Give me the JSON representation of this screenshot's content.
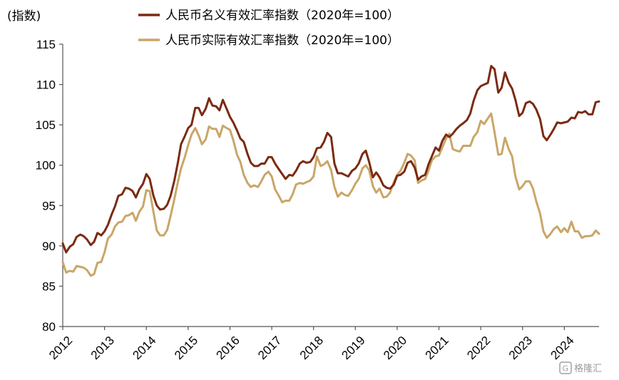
{
  "chart_data": {
    "type": "line",
    "title": "",
    "xlabel": "",
    "ylabel": "(指数)",
    "ylim": [
      80,
      115
    ],
    "yticks": [
      80,
      85,
      90,
      95,
      100,
      105,
      110,
      115
    ],
    "xlim": [
      2012,
      2024.83
    ],
    "xticks": [
      "2012",
      "2013",
      "2014",
      "2015",
      "2016",
      "2017",
      "2018",
      "2019",
      "2020",
      "2021",
      "2022",
      "2023",
      "2024"
    ],
    "grid": false,
    "legend_position": "top",
    "series": [
      {
        "name": "人民币名义有效汇率指数（2020年=100）",
        "color": "#7B2A12",
        "x": [
          2012.0,
          2012.08,
          2012.17,
          2012.25,
          2012.33,
          2012.42,
          2012.5,
          2012.58,
          2012.67,
          2012.75,
          2012.83,
          2012.92,
          2013.0,
          2013.08,
          2013.17,
          2013.25,
          2013.33,
          2013.42,
          2013.5,
          2013.58,
          2013.67,
          2013.75,
          2013.83,
          2013.92,
          2014.0,
          2014.08,
          2014.17,
          2014.25,
          2014.33,
          2014.42,
          2014.5,
          2014.58,
          2014.67,
          2014.75,
          2014.83,
          2014.92,
          2015.0,
          2015.08,
          2015.17,
          2015.25,
          2015.33,
          2015.42,
          2015.5,
          2015.58,
          2015.67,
          2015.75,
          2015.83,
          2015.92,
          2016.0,
          2016.08,
          2016.17,
          2016.25,
          2016.33,
          2016.42,
          2016.5,
          2016.58,
          2016.67,
          2016.75,
          2016.83,
          2016.92,
          2017.0,
          2017.08,
          2017.17,
          2017.25,
          2017.33,
          2017.42,
          2017.5,
          2017.58,
          2017.67,
          2017.75,
          2017.83,
          2017.92,
          2018.0,
          2018.08,
          2018.17,
          2018.25,
          2018.33,
          2018.42,
          2018.5,
          2018.58,
          2018.67,
          2018.75,
          2018.83,
          2018.92,
          2019.0,
          2019.08,
          2019.17,
          2019.25,
          2019.33,
          2019.42,
          2019.5,
          2019.58,
          2019.67,
          2019.75,
          2019.83,
          2019.92,
          2020.0,
          2020.08,
          2020.17,
          2020.25,
          2020.33,
          2020.42,
          2020.5,
          2020.58,
          2020.67,
          2020.75,
          2020.83,
          2020.92,
          2021.0,
          2021.08,
          2021.17,
          2021.25,
          2021.33,
          2021.42,
          2021.5,
          2021.58,
          2021.67,
          2021.75,
          2021.83,
          2021.92,
          2022.0,
          2022.08,
          2022.17,
          2022.25,
          2022.33,
          2022.42,
          2022.5,
          2022.58,
          2022.67,
          2022.75,
          2022.83,
          2022.92,
          2023.0,
          2023.08,
          2023.17,
          2023.25,
          2023.33,
          2023.42,
          2023.5,
          2023.58,
          2023.67,
          2023.75,
          2023.83,
          2023.92,
          2024.0,
          2024.08,
          2024.17,
          2024.25,
          2024.33,
          2024.42,
          2024.5,
          2024.58,
          2024.67,
          2024.75,
          2024.83
        ],
        "values": [
          90.3,
          89.2,
          89.9,
          90.2,
          91.1,
          91.4,
          91.2,
          90.8,
          90.1,
          90.5,
          91.6,
          91.3,
          91.8,
          92.6,
          93.9,
          94.9,
          96.2,
          96.4,
          97.2,
          97.1,
          96.8,
          96.0,
          97.0,
          97.7,
          98.9,
          98.3,
          96.2,
          95.0,
          94.5,
          94.6,
          95.1,
          96.2,
          98.1,
          100.2,
          102.6,
          103.6,
          104.6,
          105.0,
          107.1,
          107.1,
          106.2,
          107.0,
          108.3,
          107.4,
          107.3,
          106.8,
          108.1,
          107.0,
          106.0,
          105.3,
          104.3,
          103.3,
          102.9,
          101.4,
          100.3,
          99.9,
          99.9,
          100.2,
          100.2,
          101.0,
          101.0,
          100.2,
          99.5,
          98.9,
          98.3,
          98.8,
          98.7,
          99.3,
          100.2,
          100.5,
          100.3,
          100.4,
          101.0,
          102.1,
          102.2,
          102.9,
          104.0,
          103.5,
          100.2,
          99.0,
          99.0,
          98.8,
          98.6,
          99.3,
          99.6,
          100.2,
          101.4,
          101.8,
          100.4,
          98.5,
          99.1,
          98.5,
          97.5,
          97.2,
          97.1,
          97.6,
          98.7,
          98.8,
          99.2,
          100.3,
          100.5,
          99.7,
          98.2,
          98.6,
          98.8,
          100.1,
          101.1,
          102.2,
          101.8,
          103.0,
          103.8,
          103.5,
          103.9,
          104.5,
          104.9,
          105.2,
          105.6,
          106.4,
          108.0,
          109.3,
          109.8,
          110.0,
          110.2,
          112.3,
          111.9,
          109.0,
          109.6,
          111.5,
          110.2,
          109.5,
          108.1,
          106.1,
          106.5,
          107.7,
          107.9,
          107.6,
          106.9,
          105.7,
          103.6,
          103.1,
          103.8,
          104.5,
          105.3,
          105.2,
          105.3,
          105.4,
          105.9,
          105.8,
          106.6,
          106.5,
          106.7,
          106.3,
          106.3,
          107.8,
          107.9
        ]
      },
      {
        "name": "人民币实际有效汇率指数（2020年=100）",
        "color": "#C9A668",
        "x": [
          2012.0,
          2012.08,
          2012.17,
          2012.25,
          2012.33,
          2012.42,
          2012.5,
          2012.58,
          2012.67,
          2012.75,
          2012.83,
          2012.92,
          2013.0,
          2013.08,
          2013.17,
          2013.25,
          2013.33,
          2013.42,
          2013.5,
          2013.58,
          2013.67,
          2013.75,
          2013.83,
          2013.92,
          2014.0,
          2014.08,
          2014.17,
          2014.25,
          2014.33,
          2014.42,
          2014.5,
          2014.58,
          2014.67,
          2014.75,
          2014.83,
          2014.92,
          2015.0,
          2015.08,
          2015.17,
          2015.25,
          2015.33,
          2015.42,
          2015.5,
          2015.58,
          2015.67,
          2015.75,
          2015.83,
          2015.92,
          2016.0,
          2016.08,
          2016.17,
          2016.25,
          2016.33,
          2016.42,
          2016.5,
          2016.58,
          2016.67,
          2016.75,
          2016.83,
          2016.92,
          2017.0,
          2017.08,
          2017.17,
          2017.25,
          2017.33,
          2017.42,
          2017.5,
          2017.58,
          2017.67,
          2017.75,
          2017.83,
          2017.92,
          2018.0,
          2018.08,
          2018.17,
          2018.25,
          2018.33,
          2018.42,
          2018.5,
          2018.58,
          2018.67,
          2018.75,
          2018.83,
          2018.92,
          2019.0,
          2019.08,
          2019.17,
          2019.25,
          2019.33,
          2019.42,
          2019.5,
          2019.58,
          2019.67,
          2019.75,
          2019.83,
          2019.92,
          2020.0,
          2020.08,
          2020.17,
          2020.25,
          2020.33,
          2020.42,
          2020.5,
          2020.58,
          2020.67,
          2020.75,
          2020.83,
          2020.92,
          2021.0,
          2021.08,
          2021.17,
          2021.25,
          2021.33,
          2021.42,
          2021.5,
          2021.58,
          2021.67,
          2021.75,
          2021.83,
          2021.92,
          2022.0,
          2022.08,
          2022.17,
          2022.25,
          2022.33,
          2022.42,
          2022.5,
          2022.58,
          2022.67,
          2022.75,
          2022.83,
          2022.92,
          2023.0,
          2023.08,
          2023.17,
          2023.25,
          2023.33,
          2023.42,
          2023.5,
          2023.58,
          2023.67,
          2023.75,
          2023.83,
          2023.92,
          2024.0,
          2024.08,
          2024.17,
          2024.25,
          2024.33,
          2024.42,
          2024.5,
          2024.58,
          2024.67,
          2024.75,
          2024.83
        ],
        "values": [
          88.0,
          86.7,
          86.9,
          86.8,
          87.5,
          87.4,
          87.3,
          87.0,
          86.3,
          86.5,
          87.9,
          88.0,
          89.2,
          90.9,
          91.4,
          92.4,
          92.9,
          93.0,
          93.7,
          93.8,
          94.1,
          93.1,
          94.2,
          94.9,
          96.9,
          96.8,
          94.2,
          91.9,
          91.3,
          91.3,
          92.0,
          93.7,
          95.8,
          97.8,
          99.6,
          101.0,
          102.5,
          103.8,
          104.6,
          103.7,
          102.6,
          103.2,
          104.8,
          104.5,
          104.5,
          103.5,
          104.9,
          104.6,
          104.4,
          103.1,
          101.3,
          100.4,
          98.8,
          97.8,
          97.3,
          97.5,
          97.3,
          98.0,
          98.8,
          99.2,
          98.6,
          97.0,
          96.2,
          95.4,
          95.6,
          95.6,
          96.4,
          97.6,
          97.8,
          97.7,
          97.9,
          98.1,
          98.6,
          101.1,
          99.9,
          100.1,
          100.5,
          99.4,
          97.3,
          96.1,
          96.6,
          96.3,
          96.2,
          96.9,
          97.7,
          98.3,
          99.6,
          100.0,
          99.4,
          97.4,
          96.6,
          97.1,
          96.0,
          96.1,
          96.6,
          97.9,
          98.8,
          99.3,
          100.3,
          101.4,
          101.2,
          100.6,
          97.8,
          98.1,
          98.3,
          99.3,
          100.6,
          101.1,
          101.2,
          102.2,
          103.3,
          103.9,
          102.0,
          101.8,
          101.7,
          102.4,
          102.4,
          102.4,
          103.5,
          104.1,
          105.5,
          105.1,
          105.8,
          106.4,
          104.1,
          101.3,
          101.4,
          103.4,
          102.0,
          101.1,
          98.6,
          97.0,
          97.4,
          98.0,
          98.0,
          97.1,
          95.5,
          94.0,
          91.8,
          91.0,
          91.5,
          92.1,
          92.4,
          91.7,
          92.2,
          91.7,
          93.0,
          91.8,
          91.8,
          91.0,
          91.2,
          91.2,
          91.3,
          91.9,
          91.5
        ]
      }
    ]
  },
  "watermark": {
    "text": "格隆汇",
    "icon": "G-logo-icon"
  }
}
